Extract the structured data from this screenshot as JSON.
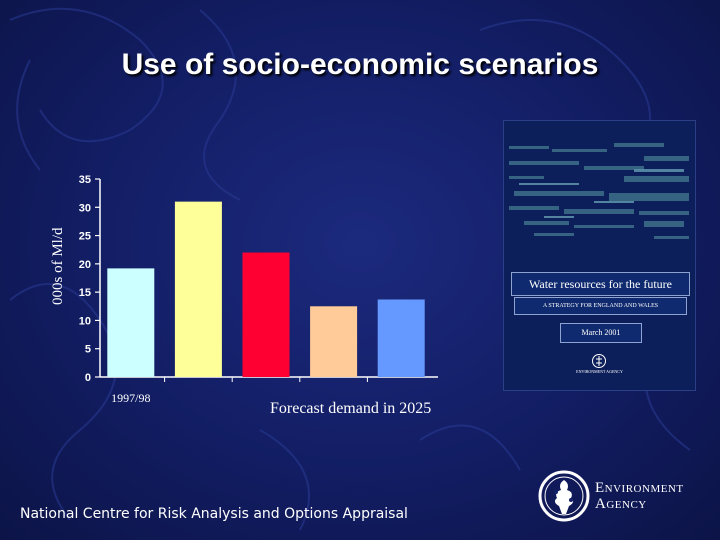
{
  "slide": {
    "title": "Use of socio-economic scenarios",
    "subtitle": "Forecast demand in 2025",
    "footer": "National Centre for Risk Analysis and Options Appraisal"
  },
  "chart_data": {
    "type": "bar",
    "title": "",
    "ylabel": "000s of Ml/d",
    "xlabel": "",
    "categories": [
      "1997/98",
      "",
      "",
      "",
      ""
    ],
    "values": [
      19.2,
      31,
      22,
      12.5,
      13.7
    ],
    "colors": [
      "#ccffff",
      "#ffff99",
      "#ff0033",
      "#ffcc99",
      "#6699ff"
    ],
    "ylim": [
      0,
      35
    ],
    "yticks": [
      0,
      5,
      10,
      15,
      20,
      25,
      30,
      35
    ],
    "grid": false,
    "legend": "none"
  },
  "cover": {
    "title": "Water resources for the future",
    "subtitle": "A STRATEGY FOR ENGLAND AND WALES",
    "date": "March 2001",
    "agency": "ENVIRONMENT AGENCY"
  },
  "logo": {
    "line1": "Environment",
    "line2": "Agency",
    "icon": "environment-agency-logo-icon"
  },
  "colors": {
    "background": "#142068",
    "text": "#ffffff",
    "axis": "#ffffff"
  }
}
